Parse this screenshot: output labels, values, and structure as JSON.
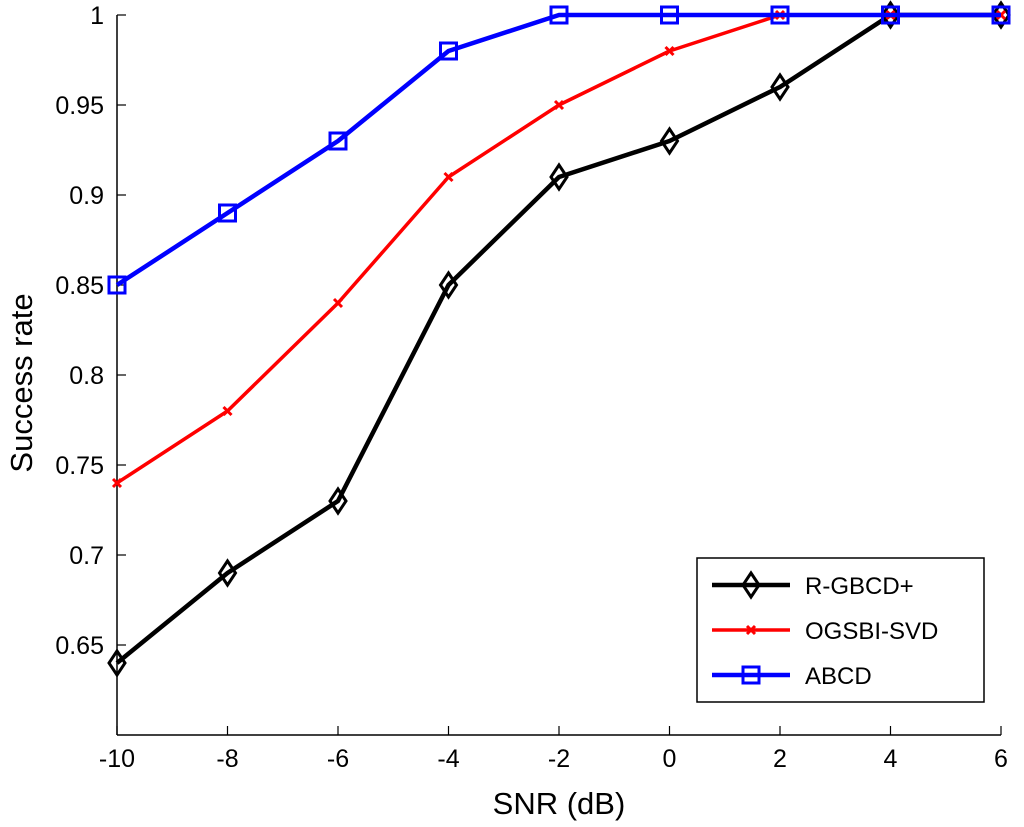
{
  "chart_data": {
    "type": "line",
    "title": "",
    "xlabel": "SNR (dB)",
    "ylabel": "Success rate",
    "x": [
      -10,
      -8,
      -6,
      -4,
      -2,
      0,
      2,
      4,
      6
    ],
    "xlim": [
      -10,
      6
    ],
    "ylim": [
      0.6,
      1.0
    ],
    "xticks": [
      -10,
      -8,
      -6,
      -4,
      -2,
      0,
      2,
      4,
      6
    ],
    "xtick_labels": [
      "-10",
      "-8",
      "-6",
      "-4",
      "-2",
      "0",
      "2",
      "4",
      "6"
    ],
    "yticks": [
      0.65,
      0.7,
      0.75,
      0.8,
      0.85,
      0.9,
      0.95,
      1
    ],
    "ytick_labels": [
      "0.65",
      "0.7",
      "0.75",
      "0.8",
      "0.85",
      "0.9",
      "0.95",
      "1"
    ],
    "grid": false,
    "legend_position": "bottom-right",
    "series": [
      {
        "name": "R-GBCD+",
        "color": "#000000",
        "marker": "diamond",
        "values": [
          0.64,
          0.69,
          0.73,
          0.85,
          0.91,
          0.93,
          0.96,
          1.0,
          1.0
        ]
      },
      {
        "name": "OGSBI-SVD",
        "color": "#ff0000",
        "marker": "x",
        "values": [
          0.74,
          0.78,
          0.84,
          0.91,
          0.95,
          0.98,
          1.0,
          1.0,
          1.0
        ]
      },
      {
        "name": "ABCD",
        "color": "#0000ff",
        "marker": "square",
        "values": [
          0.85,
          0.89,
          0.93,
          0.98,
          1.0,
          1.0,
          1.0,
          1.0,
          1.0
        ]
      }
    ]
  }
}
